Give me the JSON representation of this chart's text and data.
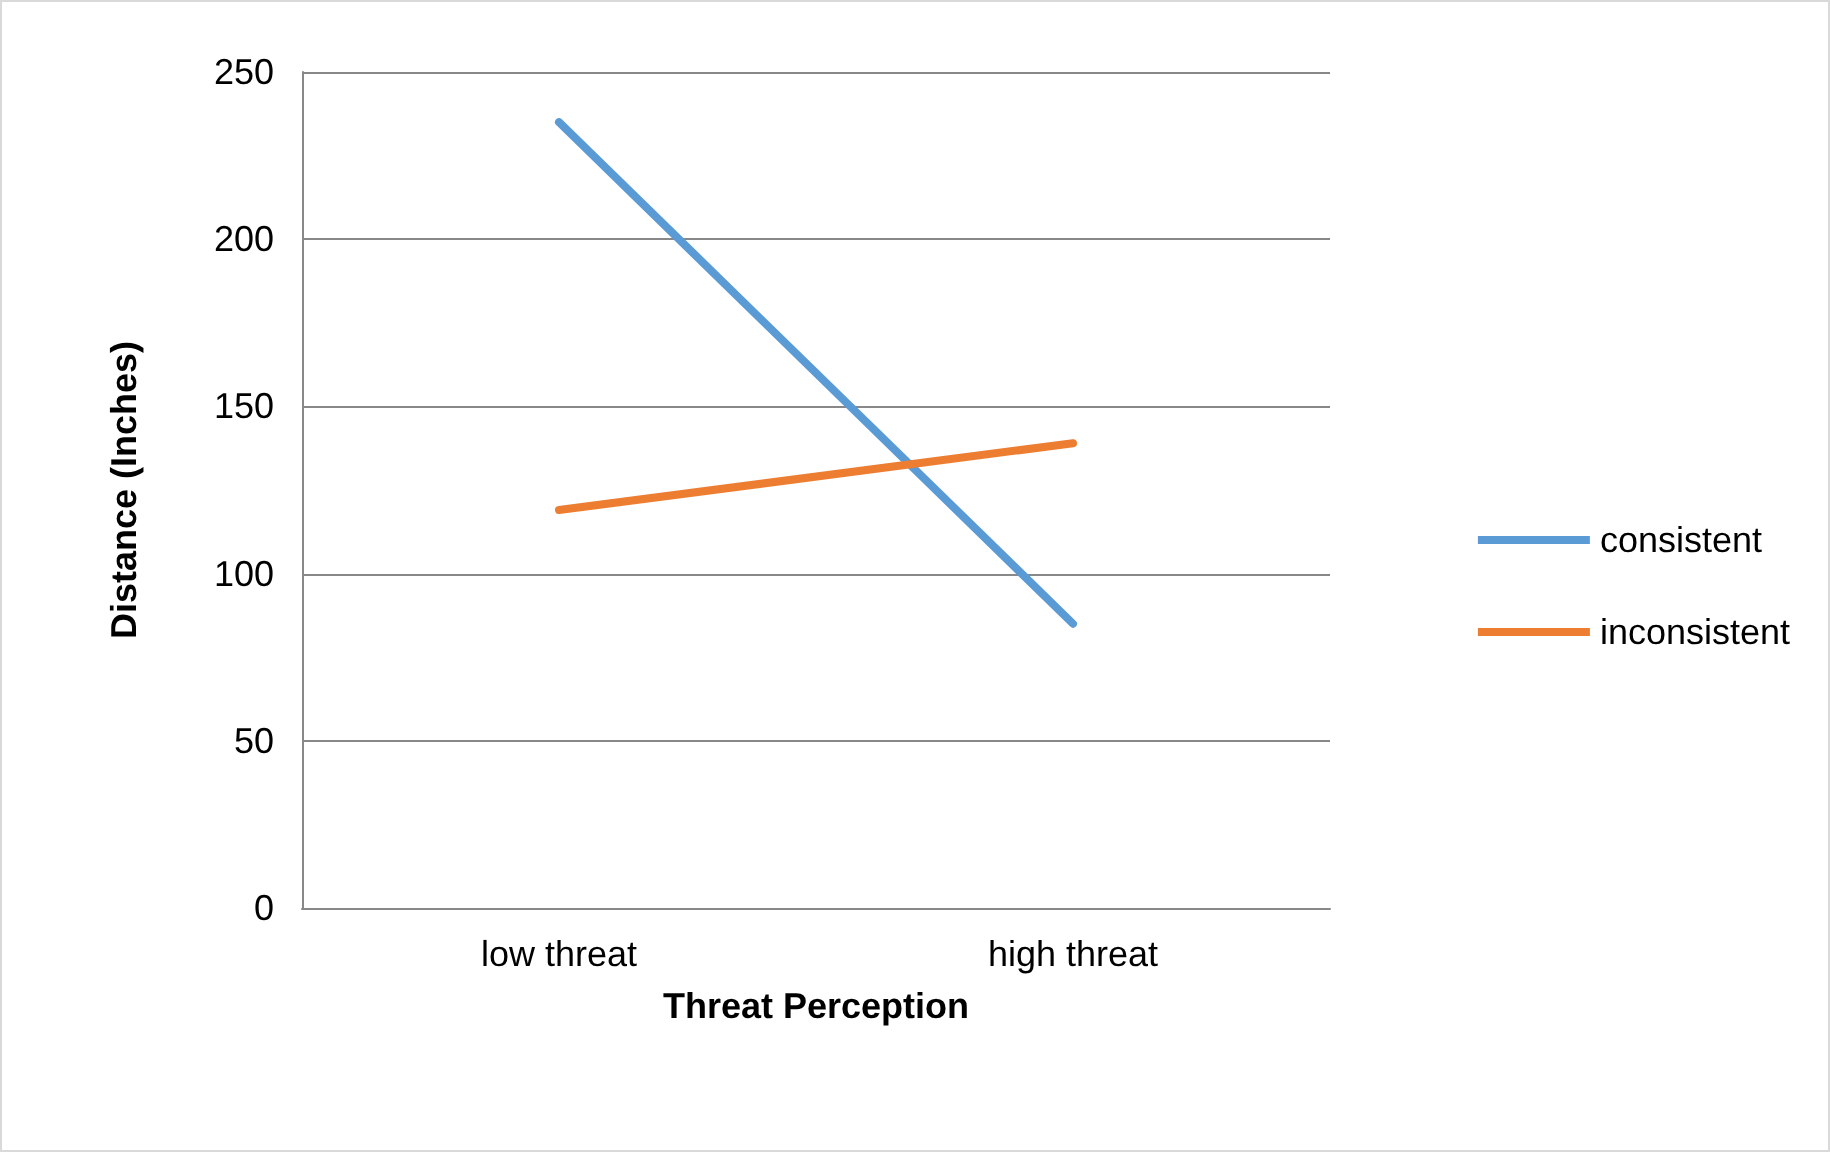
{
  "chart_data": {
    "type": "line",
    "xlabel": "Threat Perception",
    "ylabel": "Distance (Inches)",
    "categories": [
      "low threat",
      "high threat"
    ],
    "series": [
      {
        "name": "consistent",
        "color": "#5b9bd5",
        "values": [
          235,
          85
        ]
      },
      {
        "name": "inconsistent",
        "color": "#ed7d31",
        "values": [
          119,
          139
        ]
      }
    ],
    "ylim": [
      0,
      250
    ],
    "yticks": [
      0,
      50,
      100,
      150,
      200,
      250
    ],
    "grid": "y",
    "legend": "right",
    "marker": "none",
    "line_style": "solid"
  }
}
